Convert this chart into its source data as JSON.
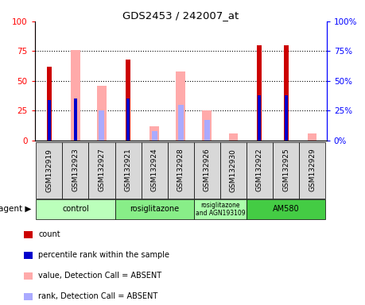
{
  "title": "GDS2453 / 242007_at",
  "samples": [
    "GSM132919",
    "GSM132923",
    "GSM132927",
    "GSM132921",
    "GSM132924",
    "GSM132928",
    "GSM132926",
    "GSM132930",
    "GSM132922",
    "GSM132925",
    "GSM132929"
  ],
  "red_bars": [
    62,
    0,
    0,
    68,
    0,
    0,
    0,
    0,
    80,
    80,
    0
  ],
  "blue_bars": [
    34,
    35,
    0,
    35,
    0,
    0,
    0,
    0,
    38,
    38,
    0
  ],
  "pink_bars": [
    0,
    76,
    46,
    0,
    12,
    58,
    25,
    6,
    0,
    0,
    6
  ],
  "lightblue_bars": [
    0,
    0,
    25,
    0,
    8,
    30,
    17,
    0,
    0,
    0,
    0
  ],
  "groups": [
    {
      "label": "control",
      "start": 0,
      "end": 2,
      "color": "#bbffbb"
    },
    {
      "label": "rosiglitazone",
      "start": 3,
      "end": 5,
      "color": "#88ee88"
    },
    {
      "label": "rosiglitazone\nand AGN193109",
      "start": 6,
      "end": 7,
      "color": "#aaffaa"
    },
    {
      "label": "AM580",
      "start": 8,
      "end": 10,
      "color": "#44cc44"
    }
  ],
  "ylim": [
    0,
    100
  ],
  "yticks": [
    0,
    25,
    50,
    75,
    100
  ],
  "legend_items": [
    {
      "color": "#cc0000",
      "label": "count"
    },
    {
      "color": "#0000cc",
      "label": "percentile rank within the sample"
    },
    {
      "color": "#ffaaaa",
      "label": "value, Detection Call = ABSENT"
    },
    {
      "color": "#aaaaff",
      "label": "rank, Detection Call = ABSENT"
    }
  ]
}
